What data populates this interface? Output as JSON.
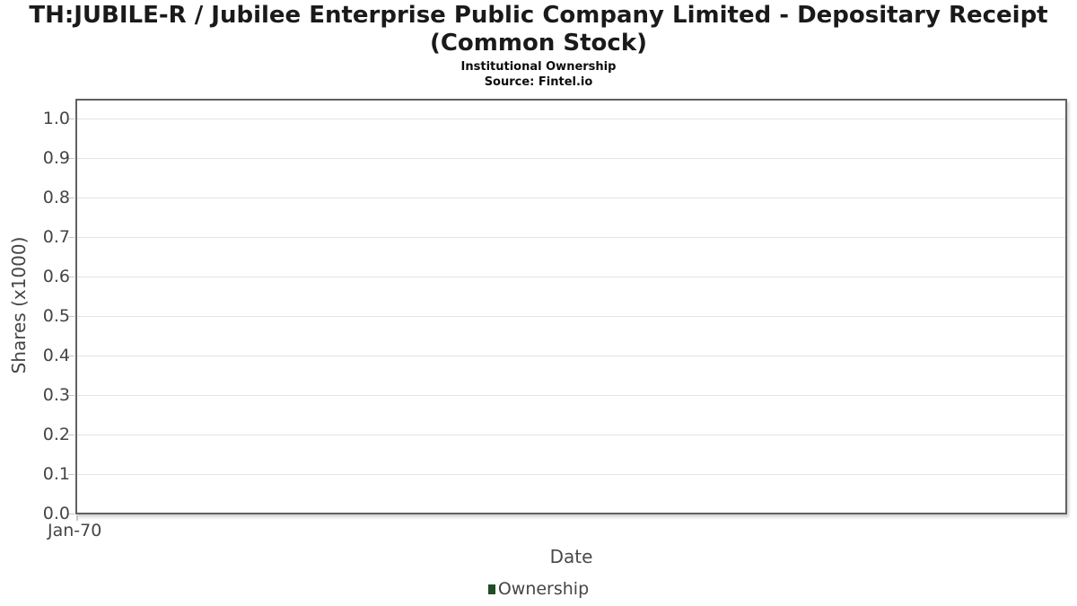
{
  "chart_data": {
    "type": "line",
    "title": "TH:JUBILE-R / Jubilee Enterprise Public Company Limited - Depositary Receipt (Common Stock)",
    "title_lines": [
      "TH:JUBILE-R / Jubilee Enterprise Public Company Limited - Depositary Receipt",
      "(Common Stock)"
    ],
    "subtitle": "Institutional Ownership",
    "source": "Source: Fintel.io",
    "xlabel": "Date",
    "ylabel": "Shares (x1000)",
    "x_ticks": [
      "Jan-70"
    ],
    "y_ticks": [
      "1.0",
      "0.9",
      "0.8",
      "0.7",
      "0.6",
      "0.5",
      "0.4",
      "0.3",
      "0.2",
      "0.1",
      "0.0"
    ],
    "ylim": [
      0.0,
      1.0
    ],
    "grid": true,
    "legend_position": "bottom",
    "series": [
      {
        "name": "Ownership",
        "color": "#1f4e25",
        "x": [],
        "values": []
      }
    ]
  }
}
